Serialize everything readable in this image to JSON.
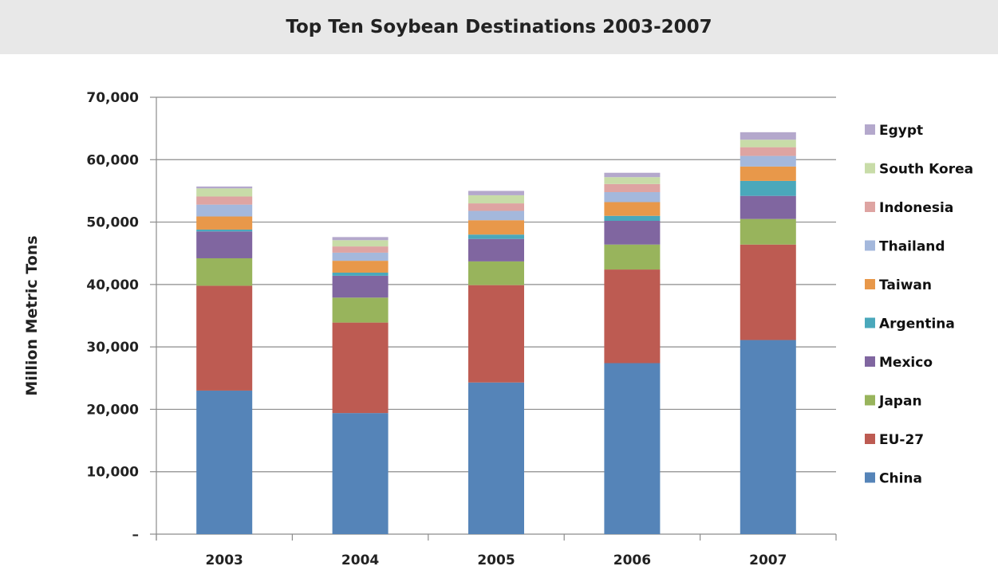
{
  "chart_data": {
    "type": "bar",
    "stacked": true,
    "title": "Top Ten Soybean Destinations 2003-2007",
    "xlabel": "",
    "ylabel": "Million Metric Tons",
    "categories": [
      "2003",
      "2004",
      "2005",
      "2006",
      "2007"
    ],
    "ylim": [
      0,
      70000
    ],
    "yticks": [
      0,
      10000,
      20000,
      30000,
      40000,
      50000,
      60000,
      70000
    ],
    "ytick_labels": [
      "–",
      "10,000",
      "20,000",
      "30,000",
      "40,000",
      "50,000",
      "60,000",
      "70,000"
    ],
    "grid": true,
    "legend_position": "right",
    "series": [
      {
        "name": "China",
        "color": "#5584b8",
        "values": [
          23000,
          19400,
          24300,
          27400,
          31100
        ]
      },
      {
        "name": "EU-27",
        "color": "#bd5b52",
        "values": [
          16800,
          14500,
          15600,
          15000,
          15300
        ]
      },
      {
        "name": "Japan",
        "color": "#98b45c",
        "values": [
          4400,
          4000,
          3800,
          4000,
          4100
        ]
      },
      {
        "name": "Mexico",
        "color": "#8066a0",
        "values": [
          4300,
          3500,
          3600,
          3800,
          3700
        ]
      },
      {
        "name": "Argentina",
        "color": "#4aa8bb",
        "values": [
          300,
          500,
          700,
          800,
          2400
        ]
      },
      {
        "name": "Taiwan",
        "color": "#e8984a",
        "values": [
          2100,
          1900,
          2300,
          2200,
          2300
        ]
      },
      {
        "name": "Thailand",
        "color": "#a4b8dc",
        "values": [
          1900,
          1300,
          1500,
          1600,
          1700
        ]
      },
      {
        "name": "Indonesia",
        "color": "#dea4a2",
        "values": [
          1300,
          1000,
          1200,
          1300,
          1400
        ]
      },
      {
        "name": "South Korea",
        "color": "#c8dca8",
        "values": [
          1300,
          1000,
          1300,
          1100,
          1200
        ]
      },
      {
        "name": "Egypt",
        "color": "#b4a8cc",
        "values": [
          300,
          500,
          700,
          700,
          1200
        ]
      }
    ]
  }
}
